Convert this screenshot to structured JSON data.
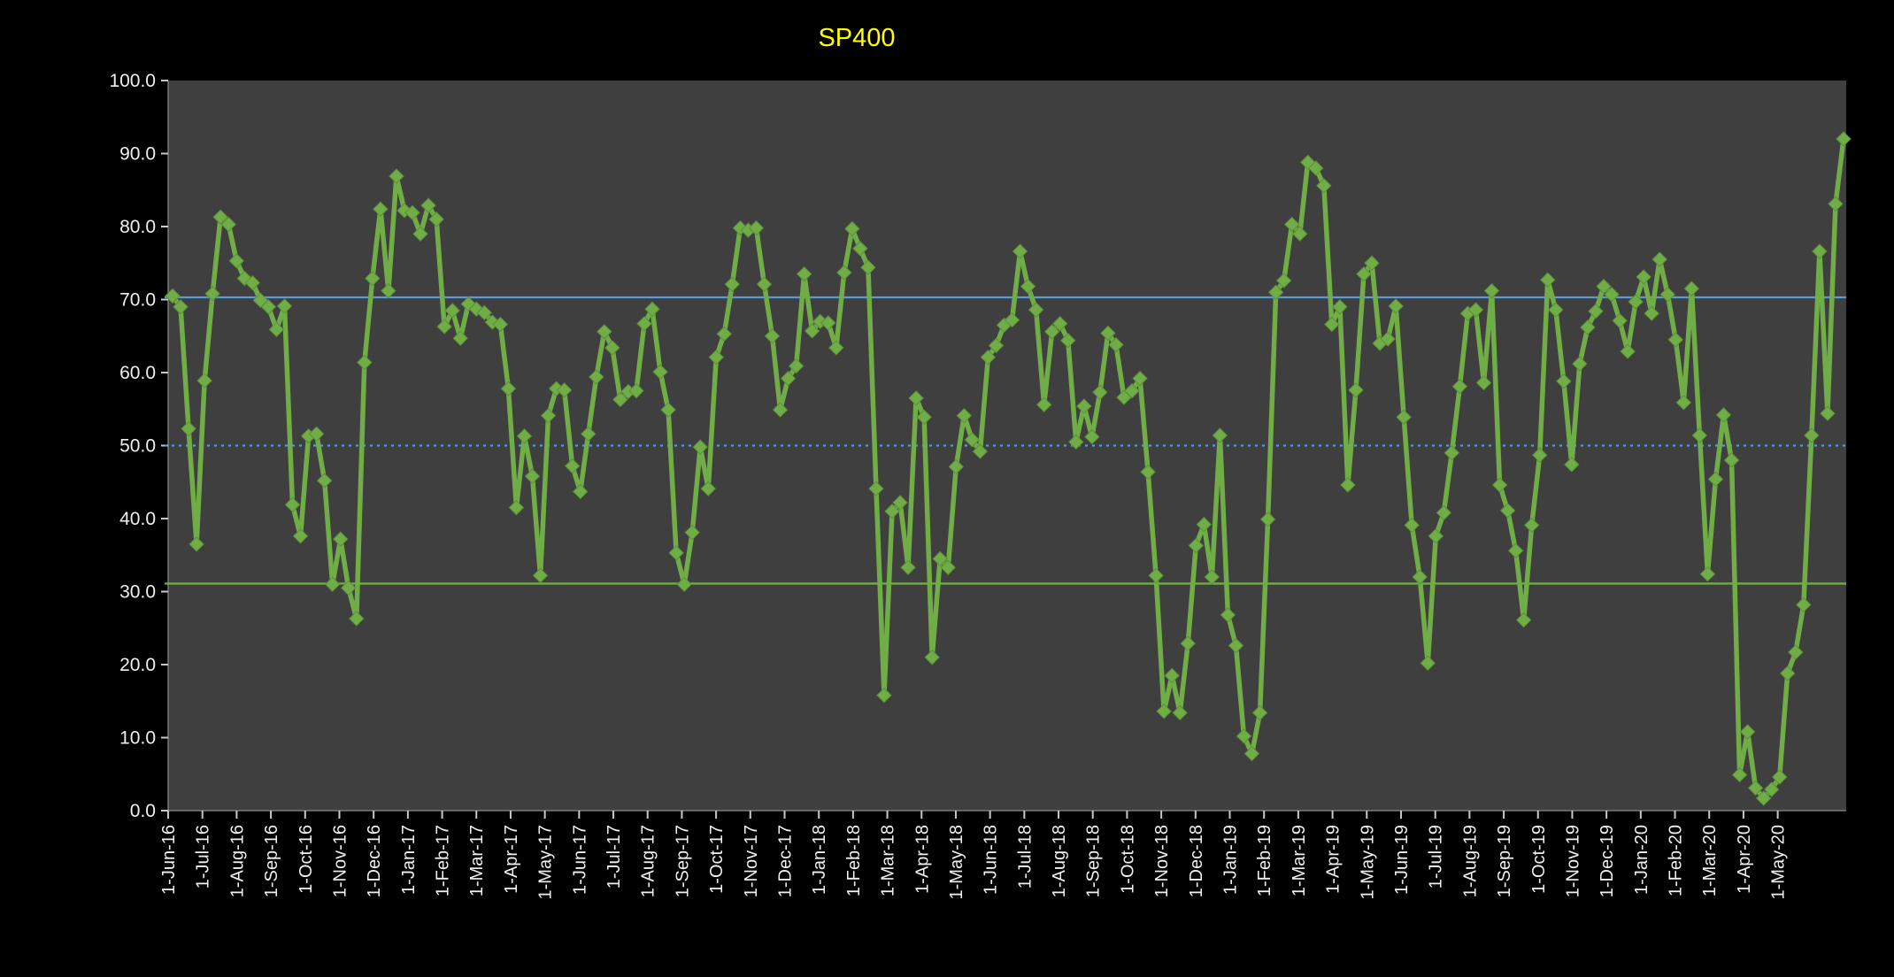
{
  "window": {
    "background": "#000000"
  },
  "chart_data": {
    "type": "line",
    "title": "SP400",
    "title_color": "#ffff00",
    "outer_bg": "#000000",
    "plot_bg": "#3f3f3f",
    "axis_text_color": "#f0f0f0",
    "tick_color": "#c9c9c9",
    "axis_line_color": "#8c8c8c",
    "grid": "off",
    "legend": "none",
    "ylim": [
      0,
      100
    ],
    "y_tick_step": 10,
    "y_tick_labels": [
      "0.0",
      "10.0",
      "20.0",
      "30.0",
      "40.0",
      "50.0",
      "60.0",
      "70.0",
      "80.0",
      "90.0",
      "100.0"
    ],
    "x_tick_labels": [
      "1-Jun-16",
      "1-Jul-16",
      "1-Aug-16",
      "1-Sep-16",
      "1-Oct-16",
      "1-Nov-16",
      "1-Dec-16",
      "1-Jan-17",
      "1-Feb-17",
      "1-Mar-17",
      "1-Apr-17",
      "1-May-17",
      "1-Jun-17",
      "1-Jul-17",
      "1-Aug-17",
      "1-Sep-17",
      "1-Oct-17",
      "1-Nov-17",
      "1-Dec-17",
      "1-Jan-18",
      "1-Feb-18",
      "1-Mar-18",
      "1-Apr-18",
      "1-May-18",
      "1-Jun-18",
      "1-Jul-18",
      "1-Aug-18",
      "1-Sep-18",
      "1-Oct-18",
      "1-Nov-18",
      "1-Dec-18",
      "1-Jan-19",
      "1-Feb-19",
      "1-Mar-19",
      "1-Apr-19",
      "1-May-19",
      "1-Jun-19",
      "1-Jul-19",
      "1-Aug-19",
      "1-Sep-19",
      "1-Oct-19",
      "1-Nov-19",
      "1-Dec-19",
      "1-Jan-20",
      "1-Feb-20",
      "1-Mar-20",
      "1-Apr-20",
      "1-May-20"
    ],
    "x_axis_extra_months": 1,
    "points_per_month": 4.33,
    "sampling": "weekly",
    "reference_lines": [
      {
        "name": "upper-band",
        "value": 70.3,
        "style": "solid",
        "color": "#5b9bd5"
      },
      {
        "name": "mid-band",
        "value": 50.0,
        "style": "dotted",
        "color": "#5b9bd5"
      },
      {
        "name": "lower-band",
        "value": 31.1,
        "style": "solid",
        "color": "#70ad47"
      }
    ],
    "series": [
      {
        "name": "SP400",
        "color": "#70ad47",
        "marker": "diamond",
        "values": [
          70.5,
          69.0,
          52.3,
          36.5,
          58.9,
          70.8,
          81.3,
          80.3,
          75.3,
          72.9,
          72.3,
          69.9,
          69.0,
          65.9,
          69.1,
          41.9,
          37.6,
          51.3,
          51.6,
          45.2,
          31.0,
          37.2,
          30.5,
          26.3,
          61.4,
          72.9,
          82.4,
          71.2,
          86.9,
          82.2,
          81.9,
          79.0,
          82.9,
          81.0,
          66.3,
          68.5,
          64.7,
          69.4,
          68.7,
          68.2,
          66.9,
          66.6,
          57.8,
          41.5,
          51.3,
          45.8,
          32.2,
          54.1,
          57.8,
          57.6,
          47.2,
          43.7,
          51.6,
          59.4,
          65.6,
          63.4,
          56.3,
          57.4,
          57.5,
          66.7,
          68.7,
          60.1,
          54.9,
          35.3,
          31.0,
          38.1,
          49.8,
          44.1,
          62.1,
          65.3,
          72.1,
          79.8,
          79.5,
          79.8,
          72.1,
          65.0,
          54.9,
          59.2,
          60.9,
          73.5,
          65.7,
          67.0,
          66.8,
          63.4,
          73.7,
          79.7,
          77.0,
          74.4,
          44.1,
          15.8,
          41.0,
          42.2,
          33.3,
          56.5,
          53.9,
          21.0,
          34.5,
          33.3,
          47.1,
          54.1,
          50.8,
          49.2,
          62.1,
          63.7,
          66.5,
          67.2,
          76.6,
          71.8,
          68.6,
          55.6,
          65.6,
          66.7,
          64.4,
          50.5,
          55.4,
          51.2,
          57.3,
          65.4,
          63.8,
          56.6,
          57.5,
          59.2,
          46.4,
          32.2,
          13.6,
          18.5,
          13.4,
          22.9,
          36.3,
          39.2,
          32.0,
          51.4,
          26.8,
          22.6,
          10.2,
          7.8,
          13.4,
          39.9,
          71.0,
          72.6,
          80.3,
          79.0,
          88.8,
          88.0,
          85.6,
          66.6,
          69.0,
          44.6,
          57.6,
          73.5,
          75.0,
          64.0,
          64.6,
          69.1,
          53.9,
          39.1,
          32.0,
          20.2,
          37.6,
          40.8,
          49.0,
          58.1,
          68.1,
          68.6,
          58.6,
          71.2,
          44.6,
          41.1,
          35.6,
          26.1,
          39.1,
          48.7,
          72.7,
          68.6,
          58.8,
          47.4,
          61.2,
          66.2,
          68.4,
          71.8,
          70.7,
          67.1,
          62.9,
          69.7,
          73.1,
          68.1,
          75.5,
          70.7,
          64.5,
          55.9,
          71.5,
          51.4,
          32.4,
          45.4,
          54.2,
          48.0,
          4.9,
          10.8,
          3.1,
          1.7,
          2.9,
          4.6,
          18.8,
          21.7,
          28.2,
          51.4,
          76.6,
          54.4,
          83.1,
          92.0
        ]
      }
    ]
  }
}
